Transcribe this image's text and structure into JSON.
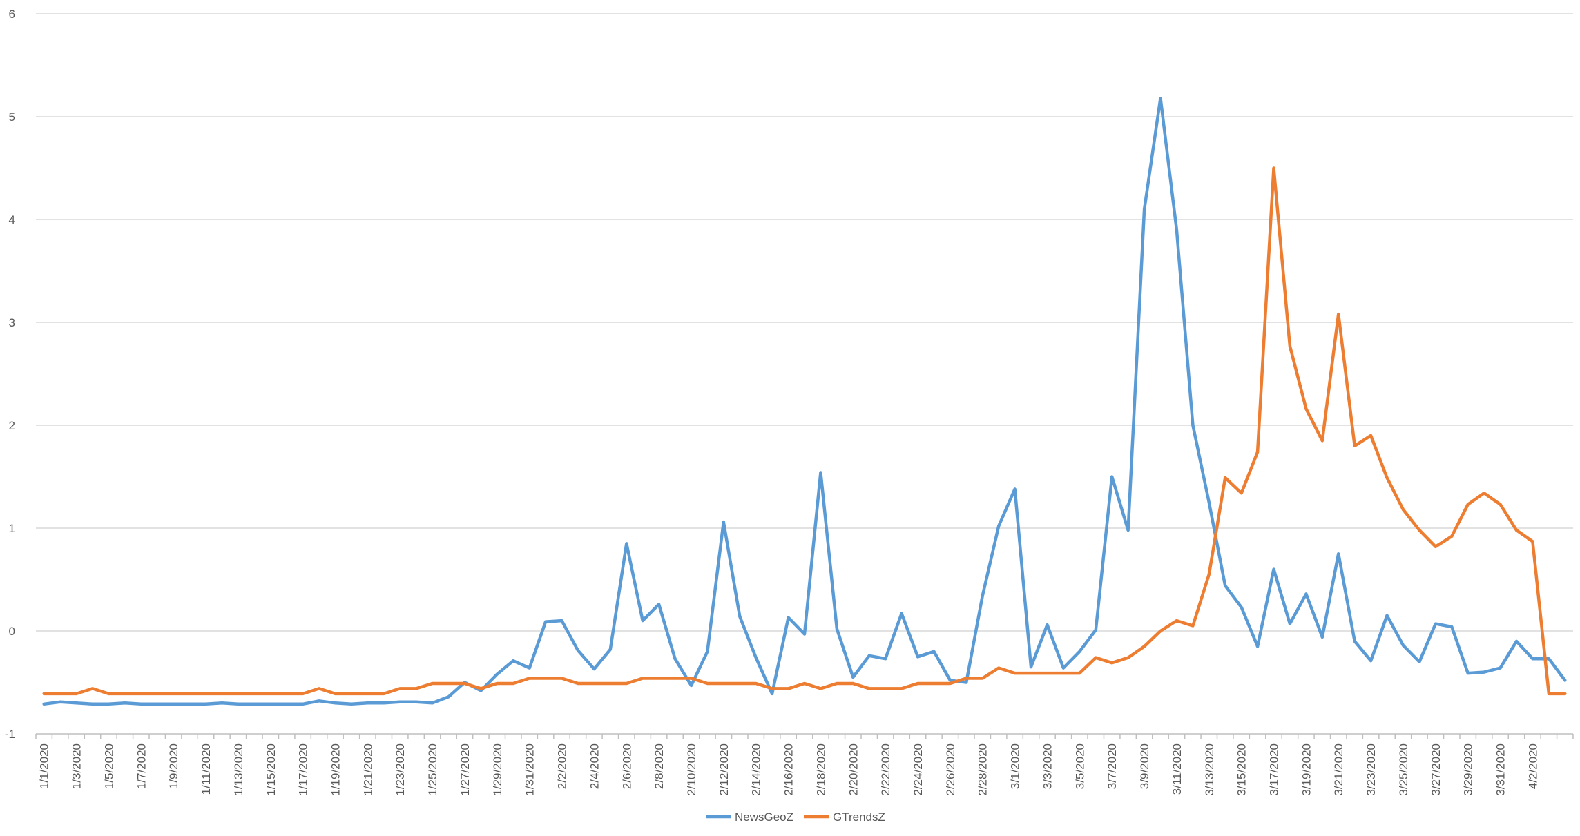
{
  "chart_data": {
    "type": "line",
    "title": "",
    "xlabel": "",
    "ylabel": "",
    "ylim": [
      -1,
      6
    ],
    "y_ticks": [
      -1,
      0,
      1,
      2,
      3,
      4,
      5,
      6
    ],
    "grid": true,
    "legend_position": "bottom",
    "x_tick_labels": [
      "1/1/2020",
      "1/3/2020",
      "1/5/2020",
      "1/7/2020",
      "1/9/2020",
      "1/11/2020",
      "1/13/2020",
      "1/15/2020",
      "1/17/2020",
      "1/19/2020",
      "1/21/2020",
      "1/23/2020",
      "1/25/2020",
      "1/27/2020",
      "1/29/2020",
      "1/31/2020",
      "2/2/2020",
      "2/4/2020",
      "2/6/2020",
      "2/8/2020",
      "2/10/2020",
      "2/12/2020",
      "2/14/2020",
      "2/16/2020",
      "2/18/2020",
      "2/20/2020",
      "2/22/2020",
      "2/24/2020",
      "2/26/2020",
      "2/28/2020",
      "3/1/2020",
      "3/3/2020",
      "3/5/2020",
      "3/7/2020",
      "3/9/2020",
      "3/11/2020",
      "3/13/2020",
      "3/15/2020",
      "3/17/2020",
      "3/19/2020",
      "3/21/2020",
      "3/23/2020",
      "3/25/2020",
      "3/27/2020",
      "3/29/2020",
      "3/31/2020",
      "4/2/2020"
    ],
    "x_start": "1/1/2020",
    "x_end": "4/3/2020",
    "series": [
      {
        "name": "NewsGeoZ",
        "color": "#5b9bd5",
        "values": [
          -0.71,
          -0.69,
          -0.7,
          -0.71,
          -0.71,
          -0.7,
          -0.71,
          -0.71,
          -0.71,
          -0.71,
          -0.71,
          -0.7,
          -0.71,
          -0.71,
          -0.71,
          -0.71,
          -0.71,
          -0.68,
          -0.7,
          -0.71,
          -0.7,
          -0.7,
          -0.69,
          -0.69,
          -0.7,
          -0.64,
          -0.5,
          -0.58,
          -0.42,
          -0.29,
          -0.36,
          0.09,
          0.1,
          -0.19,
          -0.37,
          -0.18,
          0.85,
          0.1,
          0.26,
          -0.27,
          -0.53,
          -0.2,
          1.06,
          0.14,
          -0.26,
          -0.61,
          0.13,
          -0.03,
          1.54,
          0.02,
          -0.45,
          -0.24,
          -0.27,
          0.17,
          -0.25,
          -0.2,
          -0.48,
          -0.5,
          0.34,
          1.02,
          1.38,
          -0.35,
          0.06,
          -0.36,
          -0.2,
          0.01,
          1.5,
          0.98,
          4.1,
          5.18,
          3.9,
          2.0,
          1.25,
          0.44,
          0.23,
          -0.15,
          0.6,
          0.07,
          0.36,
          -0.06,
          0.75,
          -0.1,
          -0.29,
          0.15,
          -0.14,
          -0.3,
          0.07,
          0.04,
          -0.41,
          -0.4,
          -0.36,
          -0.1,
          -0.27,
          -0.27,
          -0.48
        ]
      },
      {
        "name": "GTrendsZ",
        "color": "#ed7d31",
        "values": [
          -0.61,
          -0.61,
          -0.61,
          -0.56,
          -0.61,
          -0.61,
          -0.61,
          -0.61,
          -0.61,
          -0.61,
          -0.61,
          -0.61,
          -0.61,
          -0.61,
          -0.61,
          -0.61,
          -0.61,
          -0.56,
          -0.61,
          -0.61,
          -0.61,
          -0.61,
          -0.56,
          -0.56,
          -0.51,
          -0.51,
          -0.51,
          -0.56,
          -0.51,
          -0.51,
          -0.46,
          -0.46,
          -0.46,
          -0.51,
          -0.51,
          -0.51,
          -0.51,
          -0.46,
          -0.46,
          -0.46,
          -0.46,
          -0.51,
          -0.51,
          -0.51,
          -0.51,
          -0.56,
          -0.56,
          -0.51,
          -0.56,
          -0.51,
          -0.51,
          -0.56,
          -0.56,
          -0.56,
          -0.51,
          -0.51,
          -0.51,
          -0.46,
          -0.46,
          -0.36,
          -0.41,
          -0.41,
          -0.41,
          -0.41,
          -0.41,
          -0.26,
          -0.31,
          -0.26,
          -0.15,
          0.0,
          0.1,
          0.05,
          0.55,
          1.49,
          1.34,
          1.74,
          4.5,
          2.77,
          2.16,
          1.85,
          3.08,
          1.8,
          1.9,
          1.49,
          1.18,
          0.98,
          0.82,
          0.92,
          1.23,
          1.34,
          1.23,
          0.98,
          0.87,
          -0.61,
          -0.61
        ]
      }
    ]
  }
}
